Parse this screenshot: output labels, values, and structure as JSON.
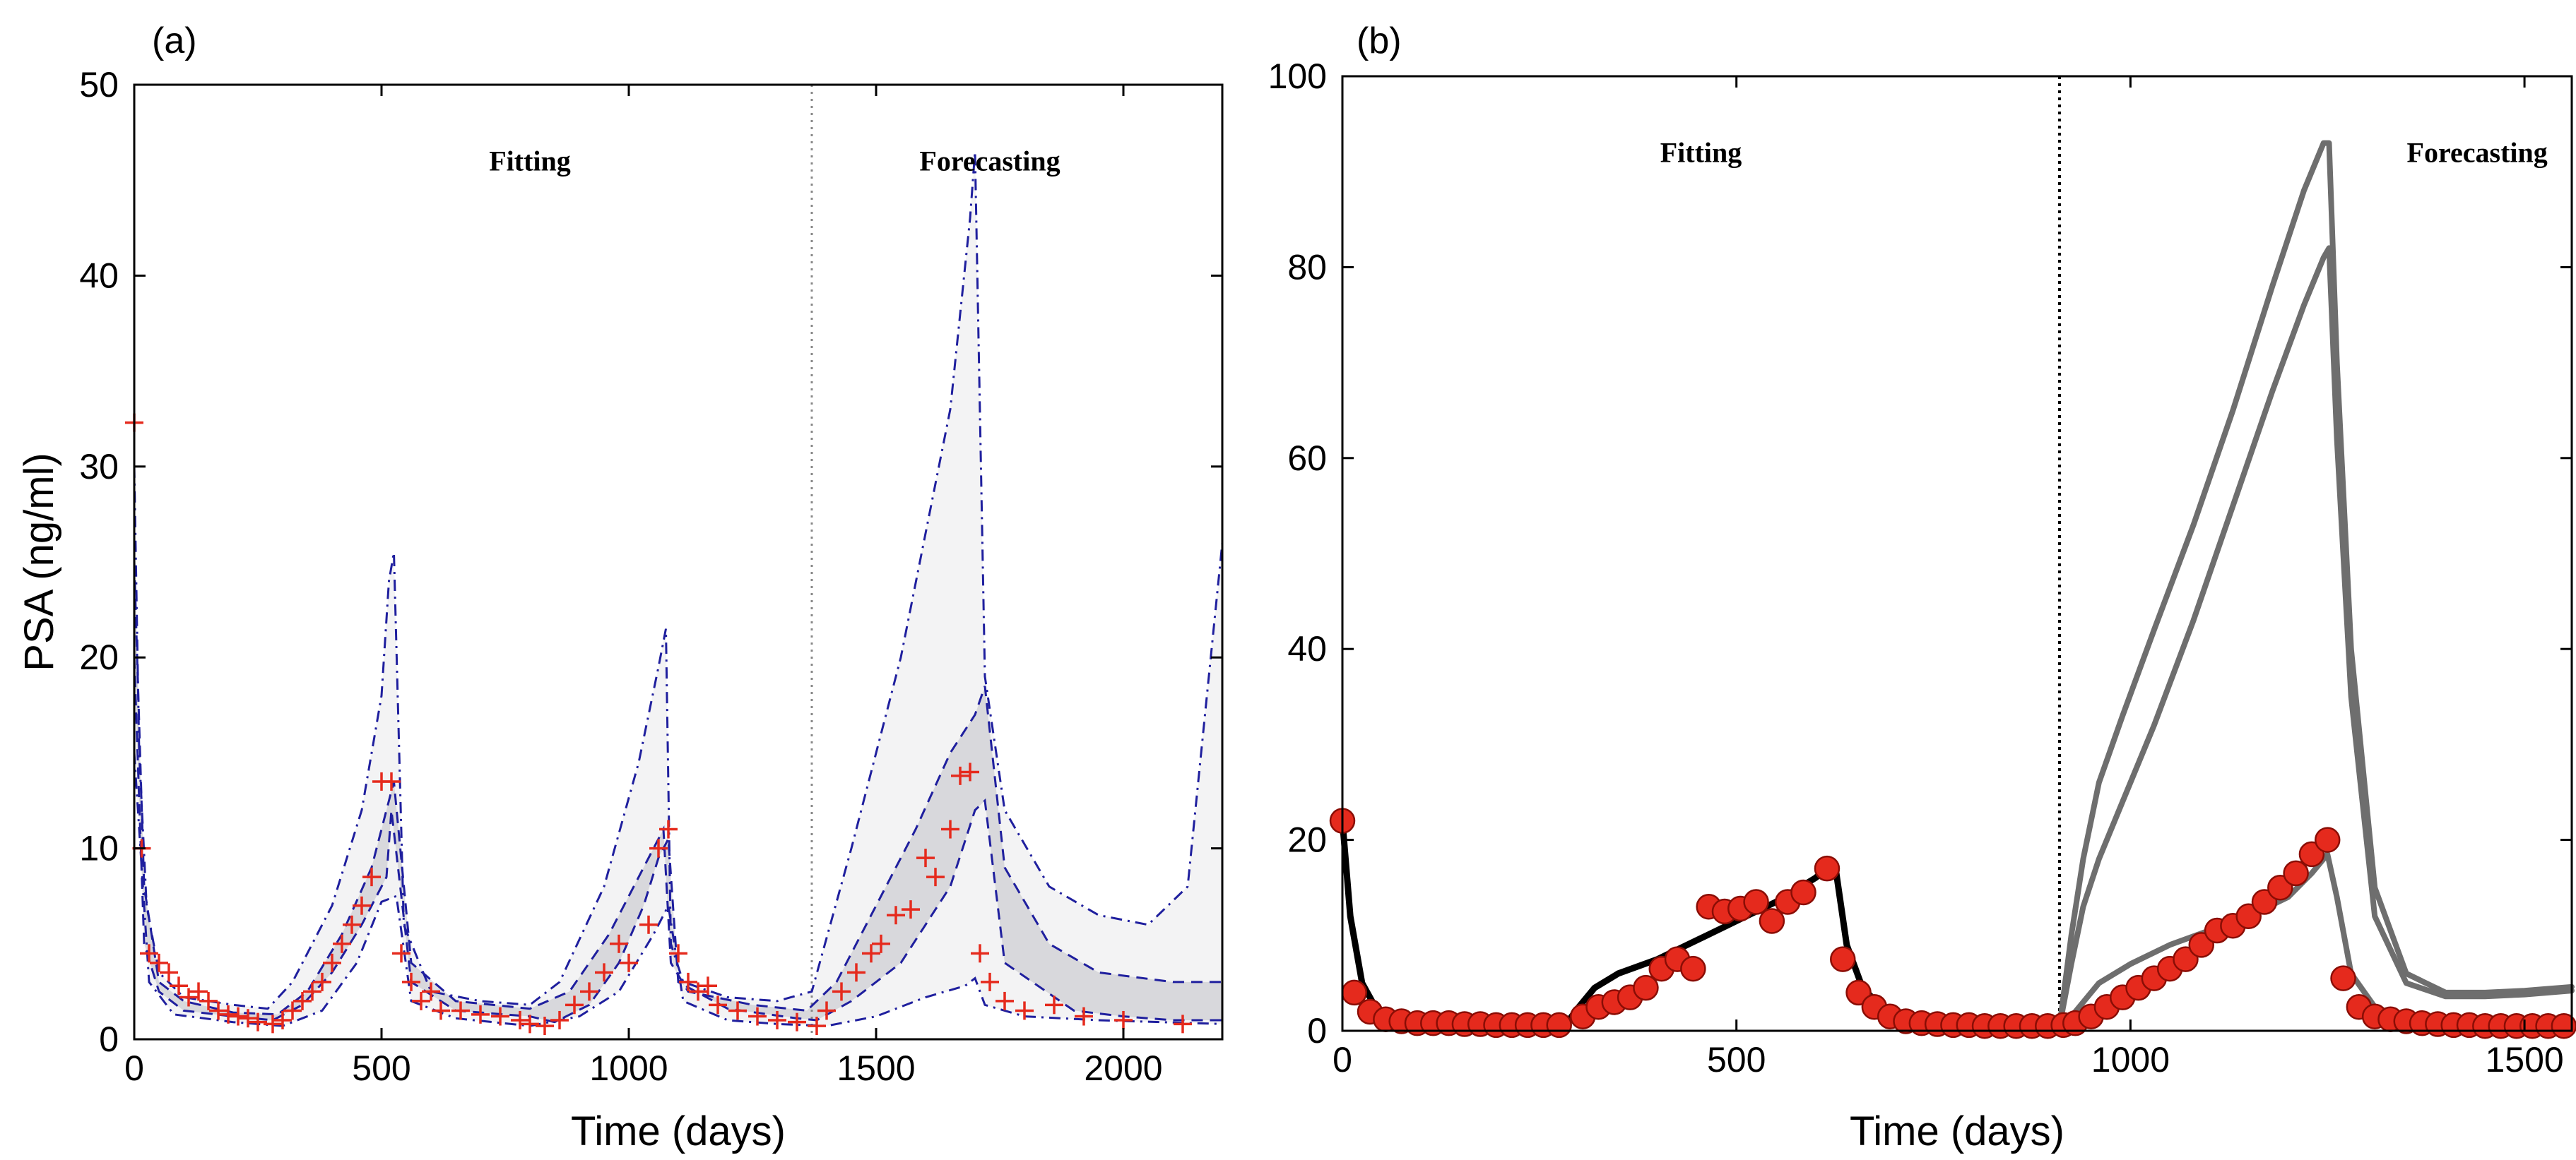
{
  "figure": {
    "colors": {
      "data_marker": "#e52a1d",
      "data_marker_edge": "#8a0d05",
      "band_blue": "#1f1f9e",
      "fit_line": "#000000",
      "forecast_line": "#6e6e6e",
      "density": "#9a9aa6"
    }
  },
  "chart_data": [
    {
      "panel": "(a)",
      "type": "line",
      "title": "",
      "xlabel": "Time (days)",
      "ylabel": "PSA (ng/ml)",
      "xlim": [
        0,
        2200
      ],
      "ylim": [
        0,
        50
      ],
      "xticks": [
        0,
        500,
        1000,
        1500,
        2000
      ],
      "yticks": [
        0,
        10,
        20,
        30,
        40,
        50
      ],
      "divider_x": 1370,
      "region_labels": [
        {
          "text": "Fitting",
          "x": 800,
          "y": 45.5
        },
        {
          "text": "Forecasting",
          "x": 1730,
          "y": 45.5
        }
      ],
      "observations": {
        "name": "PSA data",
        "marker": "plus",
        "x": [
          0,
          15,
          30,
          50,
          70,
          90,
          110,
          130,
          150,
          170,
          190,
          210,
          230,
          250,
          280,
          300,
          320,
          340,
          360,
          380,
          400,
          420,
          440,
          460,
          480,
          500,
          520,
          540,
          560,
          580,
          600,
          620,
          660,
          700,
          740,
          780,
          800,
          830,
          860,
          890,
          920,
          950,
          980,
          1000,
          1040,
          1060,
          1080,
          1100,
          1120,
          1140,
          1160,
          1180,
          1220,
          1260,
          1300,
          1340,
          1380,
          1400,
          1430,
          1460,
          1490,
          1510,
          1540,
          1570,
          1600,
          1620,
          1650,
          1670,
          1690,
          1710,
          1730,
          1760,
          1800,
          1860,
          1920,
          2000,
          2120
        ],
        "y": [
          32.3,
          10,
          4.5,
          4,
          3.5,
          2.8,
          2.2,
          2.5,
          2.0,
          1.5,
          1.3,
          1.2,
          1.1,
          0.9,
          0.8,
          1.0,
          1.5,
          2.0,
          2.5,
          3.0,
          4.0,
          5.0,
          6.0,
          7.0,
          8.5,
          13.5,
          13.5,
          4.5,
          3.0,
          2.0,
          2.5,
          1.5,
          1.5,
          1.3,
          1.2,
          1.0,
          0.8,
          0.7,
          1.0,
          1.8,
          2.5,
          3.5,
          5.0,
          4.0,
          6.0,
          10.0,
          11.0,
          4.5,
          3.0,
          2.5,
          2.8,
          1.8,
          1.5,
          1.2,
          1.0,
          0.9,
          0.7,
          1.5,
          2.5,
          3.5,
          4.5,
          5.0,
          6.5,
          6.8,
          9.5,
          8.5,
          11.0,
          13.8,
          14.0,
          4.5,
          3.0,
          2.0,
          1.5,
          1.8,
          1.2,
          1.0,
          0.8
        ]
      },
      "bands": [
        {
          "name": "upper bound",
          "style": "dash-dot",
          "x": [
            0,
            10,
            25,
            50,
            100,
            200,
            270,
            320,
            400,
            460,
            500,
            515,
            525,
            545,
            600,
            700,
            800,
            860,
            950,
            1020,
            1060,
            1075,
            1085,
            1110,
            1200,
            1300,
            1370,
            1450,
            1550,
            1650,
            1690,
            1700,
            1720,
            1760,
            1850,
            1950,
            2050,
            2130,
            2200
          ],
          "y": [
            30,
            15,
            7,
            3.5,
            2.2,
            1.8,
            1.6,
            3,
            7,
            12,
            18,
            24,
            25.5,
            6,
            2.5,
            2,
            1.8,
            3,
            8,
            14.5,
            19.5,
            21.5,
            5,
            3,
            2.2,
            2,
            2.5,
            10,
            20,
            33,
            43,
            46.5,
            19,
            12,
            8,
            6.5,
            6,
            8,
            26
          ]
        },
        {
          "name": "upper quantile",
          "style": "dashed",
          "x": [
            0,
            20,
            50,
            100,
            200,
            290,
            350,
            420,
            480,
            515,
            525,
            560,
            650,
            800,
            880,
            960,
            1030,
            1070,
            1085,
            1120,
            1250,
            1360,
            1420,
            1500,
            1580,
            1650,
            1700,
            1720,
            1760,
            1850,
            1950,
            2100,
            2200
          ],
          "y": [
            25,
            8,
            3,
            2,
            1.4,
            1.3,
            2.5,
            5.5,
            9,
            12.5,
            13.5,
            4,
            2,
            1.6,
            2.5,
            5.5,
            9,
            11,
            4,
            2.5,
            1.8,
            1.5,
            3,
            7,
            11,
            15,
            17,
            18.5,
            9,
            5,
            3.5,
            3,
            3
          ]
        },
        {
          "name": "lower quantile",
          "style": "dashed",
          "x": [
            0,
            20,
            50,
            100,
            200,
            280,
            340,
            400,
            460,
            510,
            520,
            560,
            650,
            800,
            850,
            920,
            980,
            1030,
            1060,
            1080,
            1100,
            1200,
            1340,
            1380,
            1450,
            1550,
            1650,
            1700,
            1720,
            1760,
            1900,
            2000,
            2100,
            2200
          ],
          "y": [
            20,
            5,
            2.5,
            1.5,
            1.2,
            1.0,
            1.8,
            3.5,
            6,
            8.5,
            12,
            3,
            1.5,
            1.2,
            0.9,
            1.8,
            4,
            7,
            9.5,
            10.5,
            3,
            1.6,
            1.1,
            1.0,
            2,
            4,
            8,
            12,
            12.5,
            4,
            1.5,
            1.2,
            1.0,
            1.0
          ]
        },
        {
          "name": "lower bound",
          "style": "dash-dot",
          "x": [
            0,
            30,
            80,
            200,
            300,
            380,
            450,
            500,
            530,
            560,
            650,
            800,
            900,
            980,
            1050,
            1080,
            1110,
            1200,
            1300,
            1400,
            1500,
            1600,
            1680,
            1700,
            1720,
            1800,
            1950,
            2200
          ],
          "y": [
            15,
            3,
            1.3,
            0.9,
            0.7,
            1.5,
            4,
            7.2,
            7.5,
            2,
            1.1,
            0.7,
            1.2,
            2.5,
            5.5,
            7,
            2,
            1.0,
            0.8,
            0.7,
            1.2,
            2.2,
            2.8,
            3.2,
            1.8,
            1.2,
            1.0,
            0.8
          ]
        }
      ]
    },
    {
      "panel": "(b)",
      "type": "line",
      "title": "",
      "xlabel": "Time (days)",
      "ylabel": "",
      "xlim": [
        0,
        1560
      ],
      "ylim": [
        0,
        100
      ],
      "xticks": [
        0,
        500,
        1000,
        1500
      ],
      "yticks": [
        0,
        20,
        40,
        60,
        80,
        100
      ],
      "divider_x": 910,
      "region_labels": [
        {
          "text": "Fitting",
          "x": 455,
          "y": 91
        },
        {
          "text": "Forecasting",
          "x": 1440,
          "y": 91
        }
      ],
      "observations": {
        "name": "PSA data",
        "marker": "circle",
        "x": [
          0,
          15,
          35,
          55,
          75,
          95,
          115,
          135,
          155,
          175,
          195,
          215,
          235,
          255,
          275,
          305,
          325,
          345,
          365,
          385,
          405,
          425,
          445,
          465,
          485,
          505,
          525,
          545,
          565,
          585,
          615,
          635,
          655,
          675,
          695,
          715,
          735,
          755,
          775,
          795,
          815,
          835,
          855,
          875,
          895,
          915,
          930,
          950,
          970,
          990,
          1010,
          1030,
          1050,
          1070,
          1090,
          1110,
          1130,
          1150,
          1170,
          1190,
          1210,
          1230,
          1250,
          1270,
          1290,
          1310,
          1330,
          1350,
          1370,
          1390,
          1410,
          1430,
          1450,
          1470,
          1490,
          1510,
          1530,
          1550
        ],
        "y": [
          22,
          4,
          2,
          1.2,
          1,
          0.8,
          0.8,
          0.8,
          0.7,
          0.7,
          0.6,
          0.6,
          0.6,
          0.6,
          0.6,
          1.5,
          2.5,
          3,
          3.5,
          4.5,
          6.5,
          7.5,
          6.5,
          13,
          12.5,
          12.8,
          13.5,
          11.5,
          13.5,
          14.5,
          17,
          7.5,
          4,
          2.5,
          1.5,
          1,
          0.8,
          0.7,
          0.6,
          0.6,
          0.5,
          0.5,
          0.5,
          0.5,
          0.5,
          0.6,
          0.8,
          1.5,
          2.5,
          3.5,
          4.5,
          5.5,
          6.5,
          7.5,
          9,
          10.5,
          11,
          12,
          13.5,
          15,
          16.5,
          18.5,
          20,
          5.5,
          2.5,
          1.5,
          1.2,
          1,
          0.8,
          0.7,
          0.6,
          0.6,
          0.5,
          0.5,
          0.5,
          0.5,
          0.5,
          0.5
        ]
      },
      "series": [
        {
          "name": "fit",
          "color_key": "fit_line",
          "x": [
            0,
            10,
            25,
            45,
            70,
            100,
            150,
            200,
            250,
            280,
            300,
            320,
            350,
            400,
            450,
            500,
            550,
            600,
            620,
            625,
            640,
            660,
            690,
            730,
            780,
            830,
            880,
            910
          ],
          "y": [
            22,
            12,
            5,
            2,
            0.8,
            0.4,
            0.3,
            0.3,
            0.3,
            0.3,
            2.5,
            4.5,
            6,
            7.5,
            9.5,
            11.5,
            13.5,
            16,
            17.3,
            17.5,
            9,
            4.5,
            2,
            0.8,
            0.4,
            0.3,
            0.3,
            0.3
          ]
        },
        {
          "name": "forecast upper",
          "color_key": "forecast_line",
          "x": [
            910,
            925,
            940,
            960,
            990,
            1030,
            1080,
            1130,
            1180,
            1220,
            1245,
            1252,
            1262,
            1280,
            1310,
            1350,
            1400,
            1450,
            1500,
            1560
          ],
          "y": [
            0.5,
            10,
            18,
            26,
            33,
            42,
            53,
            65,
            78,
            88,
            93,
            93,
            70,
            40,
            15,
            6,
            4,
            4,
            4.2,
            4.6
          ]
        },
        {
          "name": "forecast middle",
          "color_key": "forecast_line",
          "x": [
            910,
            925,
            940,
            960,
            990,
            1030,
            1080,
            1130,
            1180,
            1220,
            1245,
            1252,
            1262,
            1280,
            1310,
            1350,
            1400,
            1450,
            1500,
            1560
          ],
          "y": [
            0.5,
            7,
            13,
            18,
            24,
            32,
            43,
            55,
            67,
            76,
            81,
            82,
            62,
            35,
            12,
            5,
            3.6,
            3.6,
            3.8,
            4.2
          ]
        },
        {
          "name": "forecast lower",
          "color_key": "forecast_line",
          "x": [
            910,
            930,
            960,
            1000,
            1050,
            1100,
            1150,
            1200,
            1230,
            1250,
            1262,
            1280,
            1310,
            1350,
            1400,
            1450,
            1500,
            1560
          ],
          "y": [
            0.2,
            2,
            5,
            7,
            9,
            10.5,
            12,
            14,
            16.5,
            18.5,
            14,
            6,
            2.5,
            1.2,
            0.8,
            0.6,
            0.5,
            0.5
          ]
        }
      ]
    }
  ]
}
